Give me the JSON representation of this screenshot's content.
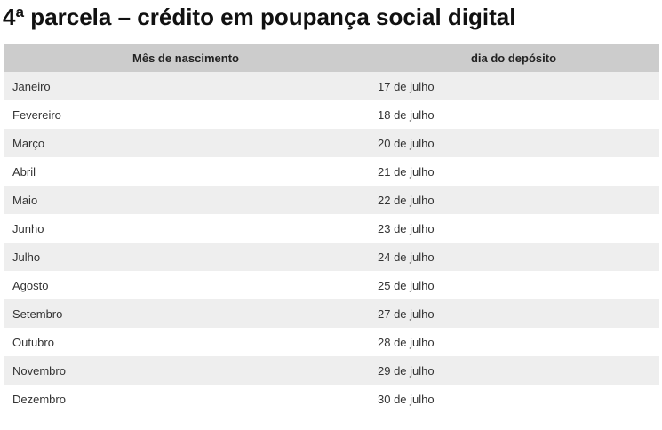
{
  "title": "4ª parcela – crédito em poupança social digital",
  "table": {
    "headers": [
      "Mês de nascimento",
      "dia do depósito"
    ],
    "rows": [
      {
        "month": "Janeiro",
        "date": "17 de julho"
      },
      {
        "month": "Fevereiro",
        "date": "18 de julho"
      },
      {
        "month": "Março",
        "date": "20 de julho"
      },
      {
        "month": "Abril",
        "date": "21 de julho"
      },
      {
        "month": "Maio",
        "date": "22 de julho"
      },
      {
        "month": "Junho",
        "date": "23 de julho"
      },
      {
        "month": "Julho",
        "date": "24 de julho"
      },
      {
        "month": "Agosto",
        "date": "25 de julho"
      },
      {
        "month": "Setembro",
        "date": "27 de julho"
      },
      {
        "month": "Outubro",
        "date": "28 de julho"
      },
      {
        "month": "Novembro",
        "date": "29 de julho"
      },
      {
        "month": "Dezembro",
        "date": "30 de julho"
      }
    ]
  },
  "colors": {
    "header_background": "#cccccc",
    "row_stripe": "#eeeeee",
    "text": "#222222"
  }
}
